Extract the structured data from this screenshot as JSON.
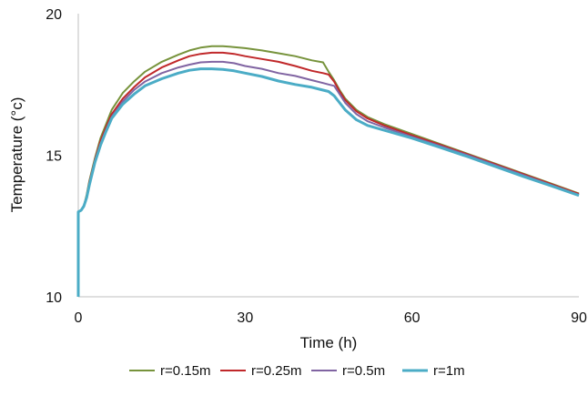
{
  "chart_data": {
    "type": "line",
    "title": "",
    "xlabel": "Time (h)",
    "ylabel": "Temperature (°c)",
    "xlim": [
      0,
      90
    ],
    "ylim": [
      10,
      20
    ],
    "xticks": [
      0,
      30,
      60,
      90
    ],
    "yticks": [
      10,
      15,
      20
    ],
    "grid": false,
    "legend_position": "bottom",
    "series": [
      {
        "name": "r=0.15m",
        "color": "#77933c",
        "x": [
          0,
          0.5,
          1,
          1.5,
          2,
          3,
          4,
          5,
          6,
          8,
          10,
          12,
          15,
          18,
          20,
          22,
          24,
          26,
          28,
          30,
          33,
          36,
          39,
          42,
          44,
          45,
          46,
          47,
          48,
          50,
          52,
          55,
          60,
          65,
          70,
          75,
          80,
          85,
          90
        ],
        "y": [
          13.0,
          13.05,
          13.2,
          13.6,
          14.1,
          14.9,
          15.6,
          16.1,
          16.6,
          17.2,
          17.6,
          17.95,
          18.3,
          18.55,
          18.7,
          18.8,
          18.85,
          18.85,
          18.82,
          18.78,
          18.7,
          18.6,
          18.5,
          18.35,
          18.28,
          17.95,
          17.65,
          17.3,
          17.0,
          16.6,
          16.35,
          16.1,
          15.75,
          15.4,
          15.05,
          14.7,
          14.35,
          14.0,
          13.65
        ]
      },
      {
        "name": "r=0.25m",
        "color": "#c0282a",
        "x": [
          0,
          0.5,
          1,
          1.5,
          2,
          3,
          4,
          5,
          6,
          8,
          10,
          12,
          15,
          18,
          20,
          22,
          24,
          26,
          28,
          30,
          33,
          36,
          39,
          42,
          44,
          45,
          46,
          47,
          48,
          50,
          52,
          55,
          60,
          65,
          70,
          75,
          80,
          85,
          90
        ],
        "y": [
          13.0,
          13.05,
          13.2,
          13.55,
          14.05,
          14.85,
          15.5,
          16.0,
          16.45,
          17.0,
          17.4,
          17.75,
          18.1,
          18.35,
          18.5,
          18.58,
          18.62,
          18.62,
          18.58,
          18.5,
          18.4,
          18.3,
          18.15,
          17.98,
          17.9,
          17.85,
          17.6,
          17.25,
          16.95,
          16.55,
          16.3,
          16.05,
          15.7,
          15.37,
          15.03,
          14.68,
          14.33,
          13.98,
          13.63
        ]
      },
      {
        "name": "r=0.5m",
        "color": "#8064a2",
        "x": [
          0,
          0.5,
          1,
          1.5,
          2,
          3,
          4,
          5,
          6,
          8,
          10,
          12,
          15,
          18,
          20,
          22,
          24,
          26,
          28,
          30,
          33,
          36,
          39,
          42,
          44,
          45,
          46,
          47,
          48,
          50,
          52,
          55,
          60,
          65,
          70,
          75,
          80,
          85,
          90
        ],
        "y": [
          13.0,
          13.05,
          13.2,
          13.5,
          14.0,
          14.8,
          15.4,
          15.9,
          16.35,
          16.9,
          17.3,
          17.6,
          17.9,
          18.1,
          18.2,
          18.28,
          18.3,
          18.3,
          18.25,
          18.15,
          18.05,
          17.9,
          17.8,
          17.65,
          17.55,
          17.5,
          17.45,
          17.15,
          16.85,
          16.45,
          16.2,
          15.98,
          15.65,
          15.33,
          15.0,
          14.65,
          14.3,
          13.95,
          13.6
        ]
      },
      {
        "name": "r=1m",
        "color": "#4bacc6",
        "x": [
          0,
          0.5,
          1,
          1.5,
          2,
          3,
          4,
          5,
          6,
          8,
          10,
          12,
          15,
          18,
          20,
          22,
          24,
          26,
          28,
          30,
          33,
          36,
          39,
          42,
          44,
          45,
          46,
          47,
          48,
          50,
          52,
          55,
          60,
          65,
          70,
          75,
          80,
          85,
          90
        ],
        "y": [
          13.0,
          13.05,
          13.2,
          13.5,
          13.95,
          14.75,
          15.35,
          15.85,
          16.3,
          16.8,
          17.15,
          17.45,
          17.7,
          17.9,
          18.0,
          18.05,
          18.05,
          18.03,
          17.98,
          17.9,
          17.78,
          17.62,
          17.5,
          17.4,
          17.3,
          17.25,
          17.1,
          16.85,
          16.6,
          16.25,
          16.05,
          15.88,
          15.6,
          15.28,
          14.95,
          14.6,
          14.25,
          13.92,
          13.58
        ]
      }
    ]
  }
}
